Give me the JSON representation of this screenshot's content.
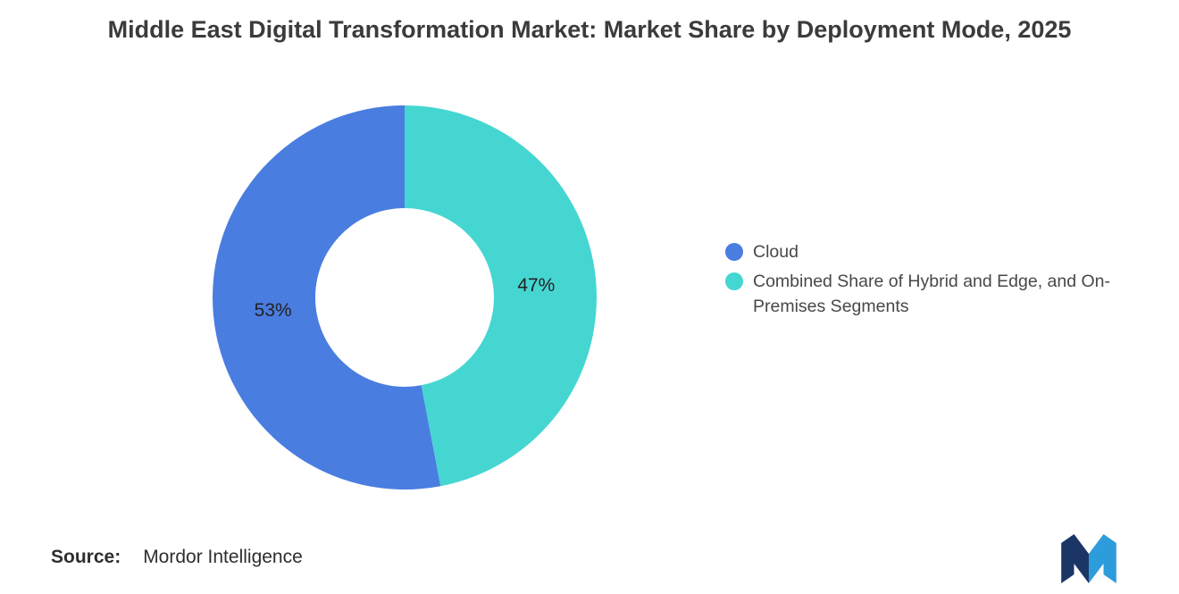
{
  "title": "Middle East Digital Transformation Market: Market Share by Deployment Mode, 2025",
  "source": {
    "label": "Source:",
    "value": "Mordor Intelligence"
  },
  "logo": {
    "name": "Mordor Intelligence",
    "colors": [
      "#1b3566",
      "#2d9cdb"
    ]
  },
  "chart_data": {
    "type": "pie",
    "subtype": "donut",
    "title": "Middle East Digital Transformation Market: Market Share by Deployment Mode, 2025",
    "labels": [
      "Cloud",
      "Combined Share of Hybrid and Edge, and On-Premises Segments"
    ],
    "values": [
      53,
      47
    ],
    "unit": "%",
    "colors": [
      "#4a7de0",
      "#45d6d2"
    ],
    "start_angle_deg": 169.2,
    "direction": "clockwise",
    "inner_radius_ratio": 0.465,
    "legend_position": "right",
    "slice_label_color": "#222222",
    "slice_labels": [
      "53%",
      "47%"
    ]
  }
}
